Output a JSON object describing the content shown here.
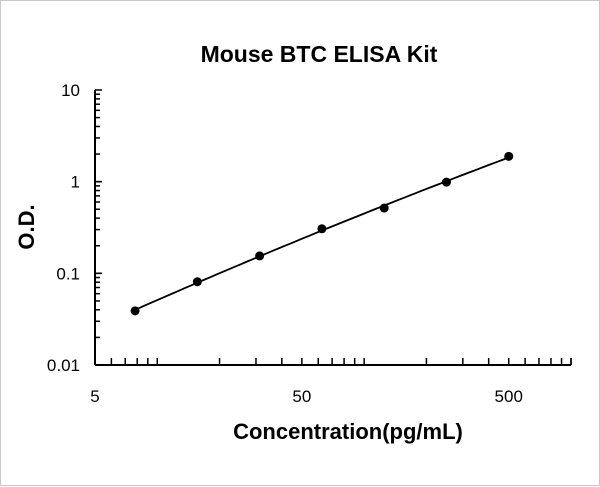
{
  "chart_data": {
    "type": "scatter",
    "title": "Mouse BTC ELISA Kit",
    "xlabel": "Concentration(pg/mL)",
    "ylabel": "O.D.",
    "x_scale": "log",
    "y_scale": "log",
    "xlim": [
      5,
      1000
    ],
    "ylim": [
      0.01,
      10
    ],
    "x_ticks": [
      5,
      50,
      500
    ],
    "x_tick_labels": [
      "5",
      "50",
      "500"
    ],
    "y_ticks": [
      0.01,
      0.1,
      1,
      10
    ],
    "y_tick_labels": [
      "0.01",
      "0.1",
      "1",
      "10"
    ],
    "grid": false,
    "legend": "none",
    "trendline": "fitted curve (log-log)",
    "series": [
      {
        "x": [
          7.8125,
          15.625,
          31.25,
          62.5,
          125,
          250,
          500
        ],
        "y": [
          0.039,
          0.081,
          0.155,
          0.306,
          0.516,
          0.99,
          1.89
        ],
        "color": "#000000"
      }
    ]
  }
}
